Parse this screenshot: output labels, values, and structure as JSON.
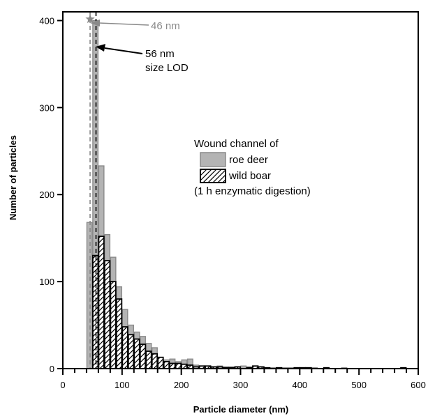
{
  "chart_data": {
    "type": "bar",
    "xlabel": "Particle diameter (nm)",
    "ylabel": "Number of particles",
    "xlim": [
      0,
      600
    ],
    "ylim": [
      0,
      410
    ],
    "x_ticks": [
      0,
      100,
      200,
      300,
      400,
      500,
      600
    ],
    "y_ticks": [
      0,
      100,
      200,
      300,
      400
    ],
    "bin_width": 10,
    "grid": false,
    "legend": {
      "position": "middle-right",
      "title": "Wound channel of",
      "note": "(1 h enzymatic digestion)"
    },
    "series": [
      {
        "name": "roe deer",
        "style": "gray",
        "color": "#b4b4b4",
        "edge": "#8a8a8a",
        "bins": [
          {
            "x": 40,
            "y": 168
          },
          {
            "x": 50,
            "y": 400
          },
          {
            "x": 60,
            "y": 233
          },
          {
            "x": 70,
            "y": 154
          },
          {
            "x": 80,
            "y": 128
          },
          {
            "x": 90,
            "y": 94
          },
          {
            "x": 100,
            "y": 68
          },
          {
            "x": 110,
            "y": 50
          },
          {
            "x": 120,
            "y": 42
          },
          {
            "x": 130,
            "y": 37
          },
          {
            "x": 140,
            "y": 29
          },
          {
            "x": 150,
            "y": 24
          },
          {
            "x": 160,
            "y": 12
          },
          {
            "x": 170,
            "y": 10
          },
          {
            "x": 180,
            "y": 11
          },
          {
            "x": 190,
            "y": 8
          },
          {
            "x": 200,
            "y": 10
          },
          {
            "x": 210,
            "y": 11
          },
          {
            "x": 220,
            "y": 4
          },
          {
            "x": 230,
            "y": 3
          },
          {
            "x": 240,
            "y": 3
          },
          {
            "x": 250,
            "y": 2
          },
          {
            "x": 260,
            "y": 3
          },
          {
            "x": 270,
            "y": 2
          },
          {
            "x": 280,
            "y": 2
          },
          {
            "x": 290,
            "y": 2
          },
          {
            "x": 300,
            "y": 3
          },
          {
            "x": 310,
            "y": 2
          },
          {
            "x": 320,
            "y": 2
          },
          {
            "x": 330,
            "y": 2
          },
          {
            "x": 340,
            "y": 1
          },
          {
            "x": 350,
            "y": 1
          },
          {
            "x": 360,
            "y": 1
          },
          {
            "x": 370,
            "y": 1
          },
          {
            "x": 380,
            "y": 1
          },
          {
            "x": 390,
            "y": 1
          },
          {
            "x": 400,
            "y": 1
          },
          {
            "x": 420,
            "y": 1
          },
          {
            "x": 440,
            "y": 1
          },
          {
            "x": 470,
            "y": 1
          },
          {
            "x": 570,
            "y": 1
          }
        ]
      },
      {
        "name": "wild boar",
        "style": "hatched",
        "color": "#ffffff",
        "edge": "#000000",
        "bins": [
          {
            "x": 50,
            "y": 130
          },
          {
            "x": 60,
            "y": 152
          },
          {
            "x": 70,
            "y": 124
          },
          {
            "x": 80,
            "y": 100
          },
          {
            "x": 90,
            "y": 80
          },
          {
            "x": 100,
            "y": 48
          },
          {
            "x": 110,
            "y": 39
          },
          {
            "x": 120,
            "y": 34
          },
          {
            "x": 130,
            "y": 28
          },
          {
            "x": 140,
            "y": 20
          },
          {
            "x": 150,
            "y": 17
          },
          {
            "x": 160,
            "y": 13
          },
          {
            "x": 170,
            "y": 8
          },
          {
            "x": 180,
            "y": 6
          },
          {
            "x": 190,
            "y": 6
          },
          {
            "x": 200,
            "y": 5
          },
          {
            "x": 210,
            "y": 4
          },
          {
            "x": 220,
            "y": 2
          },
          {
            "x": 230,
            "y": 3
          },
          {
            "x": 240,
            "y": 3
          },
          {
            "x": 250,
            "y": 2
          },
          {
            "x": 260,
            "y": 2
          },
          {
            "x": 270,
            "y": 1
          },
          {
            "x": 280,
            "y": 1
          },
          {
            "x": 290,
            "y": 2
          },
          {
            "x": 310,
            "y": 1
          },
          {
            "x": 320,
            "y": 3
          },
          {
            "x": 330,
            "y": 2
          },
          {
            "x": 340,
            "y": 1
          },
          {
            "x": 360,
            "y": 1
          },
          {
            "x": 390,
            "y": 1
          },
          {
            "x": 400,
            "y": 1
          },
          {
            "x": 410,
            "y": 1
          },
          {
            "x": 440,
            "y": 1
          },
          {
            "x": 570,
            "y": 1
          }
        ]
      }
    ],
    "reference_lines": [
      {
        "x": 46,
        "label": "46 nm",
        "color": "#888888",
        "style": "dashed"
      },
      {
        "x": 56,
        "label": "56 nm",
        "label2": "size LOD",
        "color": "#000000",
        "style": "dashed"
      }
    ]
  }
}
